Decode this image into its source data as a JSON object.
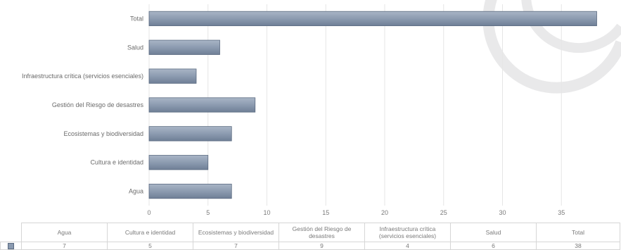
{
  "chart_data": {
    "type": "bar",
    "orientation": "horizontal",
    "categories": [
      "Total",
      "Salud",
      "Infraestructura crítica (servicios esenciales)",
      "Gestión del Riesgo de desastres",
      "Ecosistemas y biodiversidad",
      "Cultura e identidad",
      "Agua"
    ],
    "values": [
      38,
      6,
      4,
      9,
      7,
      5,
      7
    ],
    "xlim": [
      0,
      40
    ],
    "xticks": [
      0,
      5,
      10,
      15,
      20,
      25,
      30,
      35
    ],
    "grid": true,
    "bar_color": "#8a9ab0",
    "bar_edge_color": "#5a6a80"
  },
  "table": {
    "headers": [
      "Agua",
      "Cultura e identidad",
      "Ecosistemas y biodiversidad",
      "Gestión del Riesgo de desastres",
      "Infraestructura crítica (servicios esenciales)",
      "Salud",
      "Total"
    ],
    "values": [
      "7",
      "5",
      "7",
      "9",
      "4",
      "6",
      "38"
    ]
  }
}
